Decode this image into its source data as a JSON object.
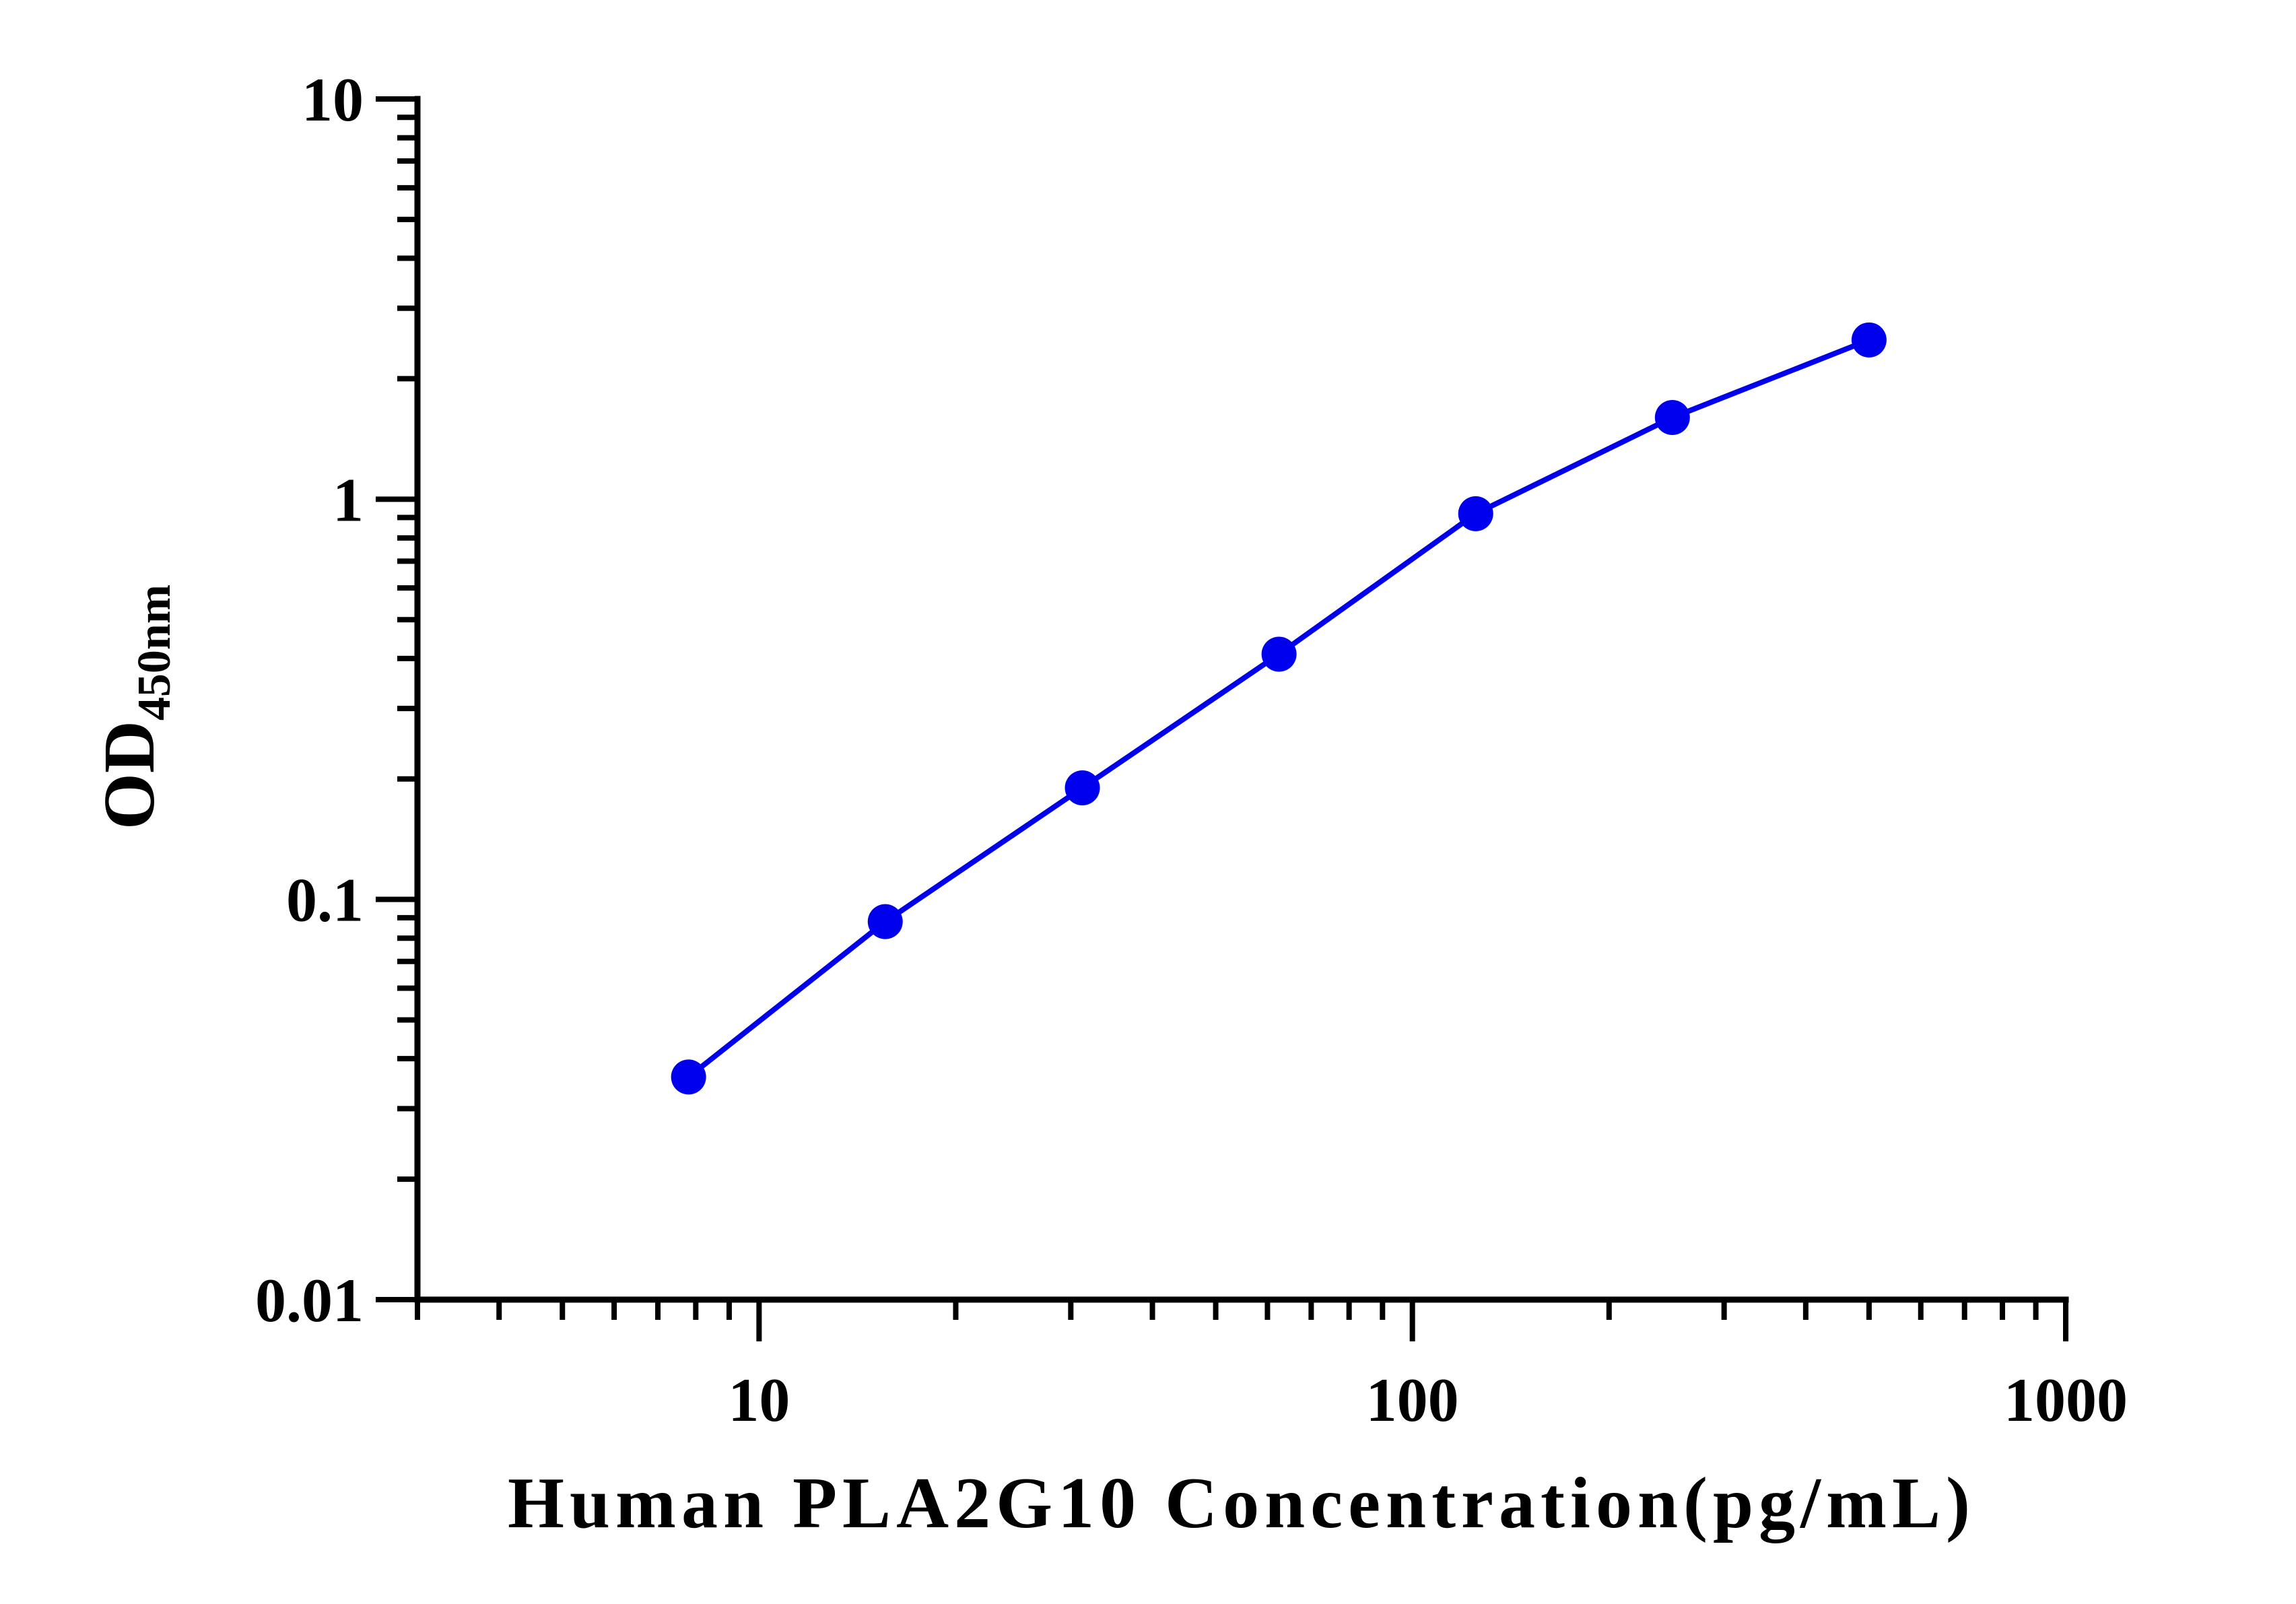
{
  "chart_data": {
    "type": "line",
    "title": "",
    "xlabel": "Human PLA2G10 Concentration(pg/mL)",
    "ylabel": {
      "main": "OD",
      "subscript": "450nm"
    },
    "x_scale": "log",
    "y_scale": "log",
    "xlim": [
      3,
      1000
    ],
    "ylim": [
      0.01,
      10
    ],
    "x_ticks": [
      {
        "value": 10,
        "label": "10"
      },
      {
        "value": 100,
        "label": "100"
      },
      {
        "value": 1000,
        "label": "1000"
      }
    ],
    "y_ticks": [
      {
        "value": 0.01,
        "label": "0.01"
      },
      {
        "value": 0.1,
        "label": "0.1"
      },
      {
        "value": 1,
        "label": "1"
      },
      {
        "value": 10,
        "label": "10"
      }
    ],
    "grid": false,
    "legend": "none",
    "series": [
      {
        "color": "#0000ee",
        "marker": "circle",
        "x": [
          7.8,
          15.6,
          31.25,
          62.5,
          125,
          250,
          500
        ],
        "y": [
          0.036,
          0.088,
          0.19,
          0.41,
          0.92,
          1.6,
          2.5
        ]
      }
    ]
  }
}
